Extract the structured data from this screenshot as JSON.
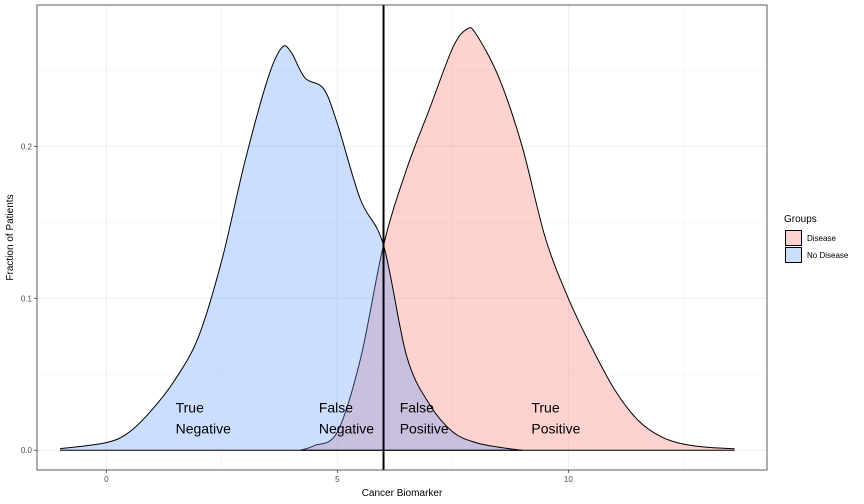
{
  "chart_data": {
    "type": "area",
    "xlabel": "Cancer Biomarker",
    "ylabel": "Fraction of Patients",
    "xlim": [
      -1.5,
      14.3
    ],
    "ylim": [
      -0.013,
      0.293
    ],
    "x_ticks": [
      0,
      5,
      10
    ],
    "x_tick_labels": [
      "0",
      "5",
      "10"
    ],
    "y_ticks": [
      0.0,
      0.1,
      0.2
    ],
    "y_tick_labels": [
      "0.0",
      "0.1",
      "0.2"
    ],
    "grid": true,
    "threshold": 6,
    "series": [
      {
        "name": "Disease",
        "color": "#F8766D",
        "x": [
          4.2,
          4.5,
          5.0,
          5.5,
          6.0,
          6.5,
          7.0,
          7.5,
          7.8,
          8.0,
          8.5,
          9.0,
          9.5,
          10.0,
          10.5,
          11.0,
          11.5,
          12.0,
          12.5,
          13.0,
          13.6
        ],
        "y": [
          0.0,
          0.003,
          0.012,
          0.06,
          0.135,
          0.185,
          0.225,
          0.265,
          0.277,
          0.274,
          0.245,
          0.2,
          0.14,
          0.1,
          0.068,
          0.04,
          0.02,
          0.009,
          0.004,
          0.002,
          0.001
        ]
      },
      {
        "name": "No Disease",
        "color": "#619CFF",
        "x": [
          -1.0,
          0.0,
          0.5,
          1.0,
          1.5,
          2.0,
          2.5,
          3.0,
          3.5,
          3.8,
          4.0,
          4.3,
          4.7,
          5.0,
          5.5,
          6.0,
          6.5,
          7.0,
          7.5,
          8.0,
          8.5,
          9.0
        ],
        "y": [
          0.001,
          0.005,
          0.012,
          0.027,
          0.047,
          0.075,
          0.125,
          0.19,
          0.245,
          0.265,
          0.262,
          0.245,
          0.238,
          0.215,
          0.165,
          0.135,
          0.062,
          0.03,
          0.012,
          0.005,
          0.002,
          0.0
        ]
      }
    ],
    "annotations": [
      {
        "x": 1.5,
        "y": 0.025,
        "line1": "True",
        "line2": "Negative"
      },
      {
        "x": 4.6,
        "y": 0.025,
        "line1": "False",
        "line2": "Negative"
      },
      {
        "x": 6.35,
        "y": 0.025,
        "line1": "False",
        "line2": "Positive"
      },
      {
        "x": 9.2,
        "y": 0.025,
        "line1": "True",
        "line2": "Positive"
      }
    ],
    "legend": {
      "title": "Groups",
      "position": "right",
      "items": [
        {
          "label": "Disease",
          "fill": "#F8766D"
        },
        {
          "label": "No Disease",
          "fill": "#619CFF"
        }
      ]
    }
  }
}
